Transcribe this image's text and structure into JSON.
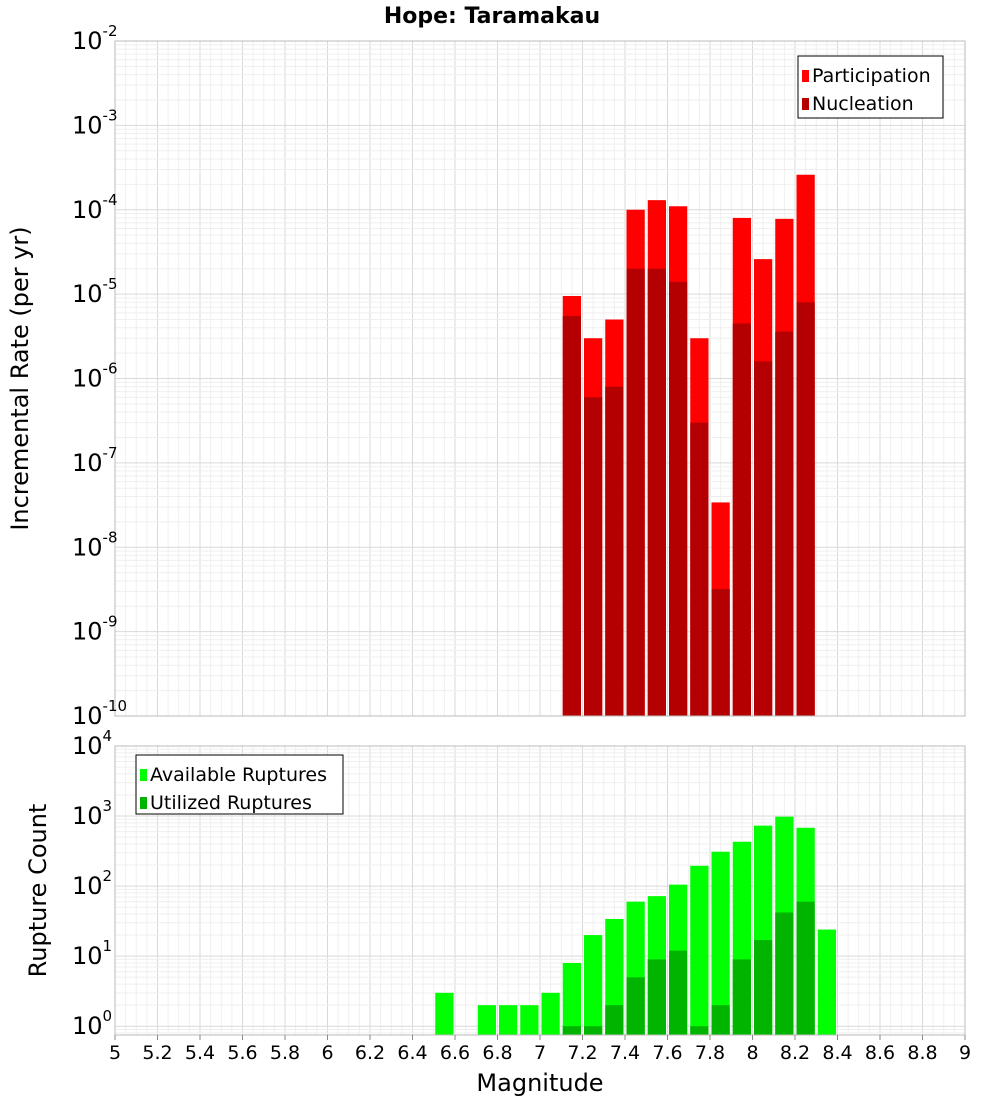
{
  "title": "Hope: Taramakau",
  "chart_data": [
    {
      "type": "bar",
      "scale": "log",
      "ylabel": "Incremental Rate (per yr)",
      "ylim": [
        1e-10,
        0.01
      ],
      "xlim": [
        5,
        9
      ],
      "bin_width": 0.1,
      "legend_position": "top-right",
      "y_ticks": [
        {
          "base": "10",
          "exp": "-10",
          "value": 1e-10
        },
        {
          "base": "10",
          "exp": "-9",
          "value": 1e-09
        },
        {
          "base": "10",
          "exp": "-8",
          "value": 1e-08
        },
        {
          "base": "10",
          "exp": "-7",
          "value": 1e-07
        },
        {
          "base": "10",
          "exp": "-6",
          "value": 1e-06
        },
        {
          "base": "10",
          "exp": "-5",
          "value": 1e-05
        },
        {
          "base": "10",
          "exp": "-4",
          "value": 0.0001
        },
        {
          "base": "10",
          "exp": "-3",
          "value": 0.001
        },
        {
          "base": "10",
          "exp": "-2",
          "value": 0.01
        }
      ],
      "series": [
        {
          "name": "Participation",
          "color": "#ff0000",
          "x": [
            7.15,
            7.25,
            7.35,
            7.45,
            7.55,
            7.65,
            7.75,
            7.85,
            7.95,
            8.05,
            8.15,
            8.25
          ],
          "values": [
            9.5e-06,
            3e-06,
            5e-06,
            0.0001,
            0.00013,
            0.00011,
            3e-06,
            3.4e-08,
            8e-05,
            2.6e-05,
            7.8e-05,
            0.00026
          ]
        },
        {
          "name": "Nucleation",
          "color": "#b40000",
          "x": [
            7.15,
            7.25,
            7.35,
            7.45,
            7.55,
            7.65,
            7.75,
            7.85,
            7.95,
            8.05,
            8.15,
            8.25
          ],
          "values": [
            5.5e-06,
            6e-07,
            8e-07,
            2e-05,
            2e-05,
            1.4e-05,
            3e-07,
            3.2e-09,
            4.5e-06,
            1.6e-06,
            3.6e-06,
            8e-06
          ]
        }
      ]
    },
    {
      "type": "bar",
      "scale": "log",
      "ylabel": "Rupture Count",
      "xlabel": "Magnitude",
      "ylim": [
        0.75,
        10000
      ],
      "xlim": [
        5,
        9
      ],
      "bin_width": 0.1,
      "legend_position": "top-left",
      "x_ticks": [
        "5",
        "5.2",
        "5.4",
        "5.6",
        "5.8",
        "6",
        "6.2",
        "6.4",
        "6.6",
        "6.8",
        "7",
        "7.2",
        "7.4",
        "7.6",
        "7.8",
        "8",
        "8.2",
        "8.4",
        "8.6",
        "8.8",
        "9"
      ],
      "y_ticks": [
        {
          "base": "10",
          "exp": "0",
          "value": 1
        },
        {
          "base": "10",
          "exp": "1",
          "value": 10
        },
        {
          "base": "10",
          "exp": "2",
          "value": 100
        },
        {
          "base": "10",
          "exp": "3",
          "value": 1000
        },
        {
          "base": "10",
          "exp": "4",
          "value": 10000
        }
      ],
      "series": [
        {
          "name": "Available Ruptures",
          "color": "#00ff00",
          "x": [
            6.55,
            6.75,
            6.85,
            6.95,
            7.05,
            7.15,
            7.25,
            7.35,
            7.45,
            7.55,
            7.65,
            7.75,
            7.85,
            7.95,
            8.05,
            8.15,
            8.25,
            8.35
          ],
          "values": [
            3,
            2,
            2,
            2,
            3,
            8,
            20,
            34,
            60,
            72,
            105,
            195,
            310,
            430,
            730,
            980,
            680,
            24
          ]
        },
        {
          "name": "Utilized Ruptures",
          "color": "#00b400",
          "x": [
            7.15,
            7.25,
            7.35,
            7.45,
            7.55,
            7.65,
            7.75,
            7.85,
            7.95,
            8.05,
            8.15,
            8.25
          ],
          "values": [
            1,
            1,
            2,
            5,
            9,
            12,
            1,
            2,
            9,
            17,
            42,
            60
          ]
        }
      ]
    }
  ]
}
